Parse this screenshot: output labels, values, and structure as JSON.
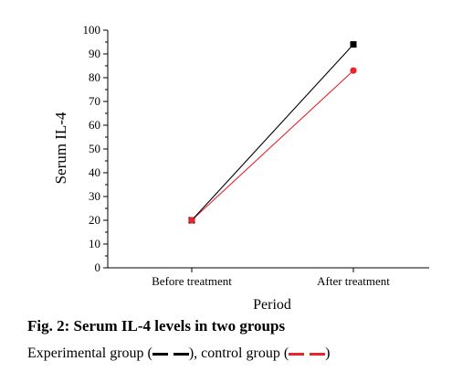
{
  "chart_data": {
    "type": "line",
    "categories": [
      "Before treatment",
      "After treatment"
    ],
    "series": [
      {
        "color": "#000000",
        "marker": "square",
        "values": [
          20,
          94
        ]
      },
      {
        "color": "#e8252b",
        "marker": "circle",
        "values": [
          20,
          83
        ]
      }
    ],
    "xlabel": "Period",
    "ylabel": "Serum IL-4",
    "ylim": [
      0,
      100
    ],
    "yticks": [
      0,
      10,
      20,
      30,
      40,
      50,
      60,
      70,
      80,
      90,
      100
    ],
    "grid": false
  },
  "caption": "Fig. 2: Serum IL-4 levels in two groups",
  "legend": {
    "experimental_label": "Experimental group (",
    "separator": "), control group (",
    "closing": ")",
    "experimental_color": "#000000",
    "control_color": "#e8252b"
  }
}
